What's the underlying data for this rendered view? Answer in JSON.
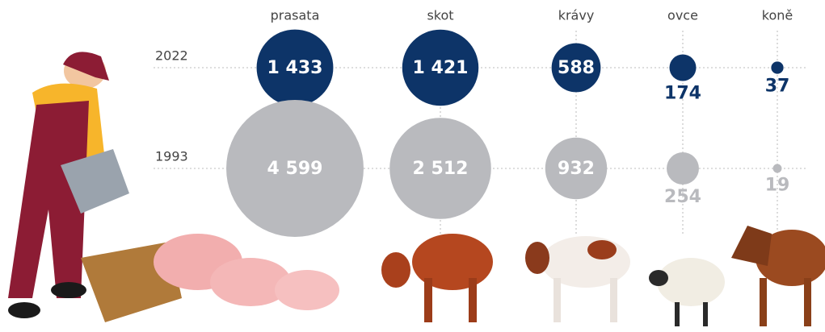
{
  "chart_data": {
    "type": "bubble",
    "categories": [
      "prasata",
      "skot",
      "krávy",
      "ovce",
      "koně"
    ],
    "series": [
      {
        "name": "2022",
        "color": "#0d3468",
        "values": [
          1433,
          1421,
          588,
          174,
          37
        ],
        "value_labels": [
          "1 433",
          "1 421",
          "588",
          "174",
          "37"
        ]
      },
      {
        "name": "1993",
        "color": "#b9babe",
        "values": [
          4599,
          2512,
          932,
          254,
          19
        ],
        "value_labels": [
          "4 599",
          "2 512",
          "932",
          "254",
          "19"
        ]
      }
    ]
  }
}
